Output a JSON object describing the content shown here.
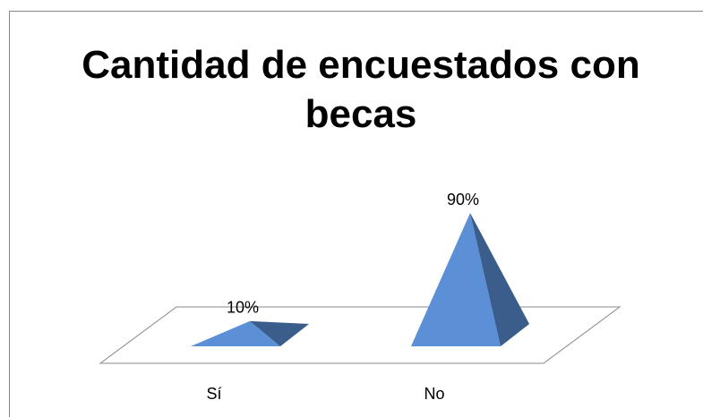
{
  "chart_data": {
    "type": "pyramid",
    "title": "Cantidad de encuestados con becas",
    "categories": [
      "Sí",
      "No"
    ],
    "values": [
      10,
      90
    ],
    "value_labels": [
      "10%",
      "90%"
    ],
    "color": "#5b8fd6"
  }
}
